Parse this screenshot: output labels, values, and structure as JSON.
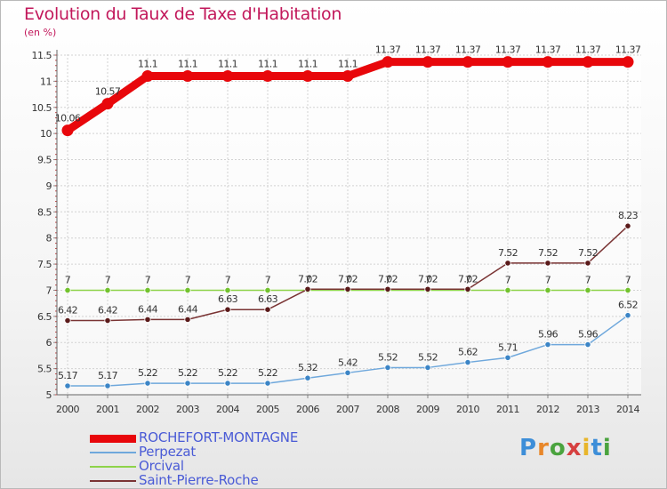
{
  "title": "Evolution du Taux de Taxe d'Habitation",
  "unit": "(en %)",
  "logo": {
    "letters": [
      {
        "ch": "P",
        "color": "#3d8ed8"
      },
      {
        "ch": "r",
        "color": "#e8872a"
      },
      {
        "ch": "o",
        "color": "#4aa33e"
      },
      {
        "ch": "x",
        "color": "#d63f3f"
      },
      {
        "ch": "i",
        "color": "#e8b52a"
      },
      {
        "ch": "t",
        "color": "#3d8ed8"
      },
      {
        "ch": "i",
        "color": "#4aa33e"
      }
    ]
  },
  "chart_data": {
    "type": "line",
    "title": "Evolution du Taux de Taxe d'Habitation",
    "ylabel": "(en %)",
    "xlabel": "",
    "ylim": [
      5,
      11.5
    ],
    "yticks": [
      "5",
      "5.5",
      "6",
      "6.5",
      "7",
      "7.5",
      "8",
      "8.5",
      "9",
      "9.5",
      "10",
      "10.5",
      "11",
      "11.5"
    ],
    "categories": [
      "2000",
      "2001",
      "2002",
      "2003",
      "2004",
      "2005",
      "2006",
      "2007",
      "2008",
      "2009",
      "2010",
      "2011",
      "2012",
      "2013",
      "2014"
    ],
    "legend_position": "bottom-left",
    "series": [
      {
        "name": "ROCHEFORT-MONTAGNE",
        "color": "#e8070b",
        "width": "thick",
        "values": [
          10.06,
          10.57,
          11.1,
          11.1,
          11.1,
          11.1,
          11.1,
          11.1,
          11.37,
          11.37,
          11.37,
          11.37,
          11.37,
          11.37,
          11.37
        ],
        "labels": [
          "10.06",
          "10.57",
          "11.1",
          "11.1",
          "11.1",
          "11.1",
          "11.1",
          "11.1",
          "11.37",
          "11.37",
          "11.37",
          "11.37",
          "11.37",
          "11.37",
          "11.37"
        ]
      },
      {
        "name": "Perpezat",
        "color": "#6fa8dc",
        "marker": "#3c85c6",
        "values": [
          5.17,
          5.17,
          5.22,
          5.22,
          5.22,
          5.22,
          5.32,
          5.42,
          5.52,
          5.52,
          5.62,
          5.71,
          5.96,
          5.96,
          6.52
        ],
        "labels": [
          "5.17",
          "5.17",
          "5.22",
          "5.22",
          "5.22",
          "5.22",
          "5.32",
          "5.42",
          "5.52",
          "5.52",
          "5.62",
          "5.71",
          "5.96",
          "5.96",
          "6.52"
        ]
      },
      {
        "name": "Orcival",
        "color": "#8ed34a",
        "marker": "#72c22d",
        "values": [
          7,
          7,
          7,
          7,
          7,
          7,
          7,
          7,
          7,
          7,
          7,
          7,
          7,
          7,
          7
        ],
        "labels": [
          "7",
          "7",
          "7",
          "7",
          "7",
          "7",
          "7",
          "7",
          "7",
          "7",
          "7",
          "7",
          "7",
          "7",
          "7"
        ]
      },
      {
        "name": "Saint-Pierre-Roche",
        "color": "#7a3434",
        "marker": "#5a1a1a",
        "values": [
          6.42,
          6.42,
          6.44,
          6.44,
          6.63,
          6.63,
          7.02,
          7.02,
          7.02,
          7.02,
          7.02,
          7.52,
          7.52,
          7.52,
          8.23
        ],
        "labels": [
          "6.42",
          "6.42",
          "6.44",
          "6.44",
          "6.63",
          "6.63",
          "7.02",
          "7.02",
          "7.02",
          "7.02",
          "7.02",
          "7.52",
          "7.52",
          "7.52",
          "8.23"
        ]
      }
    ]
  }
}
